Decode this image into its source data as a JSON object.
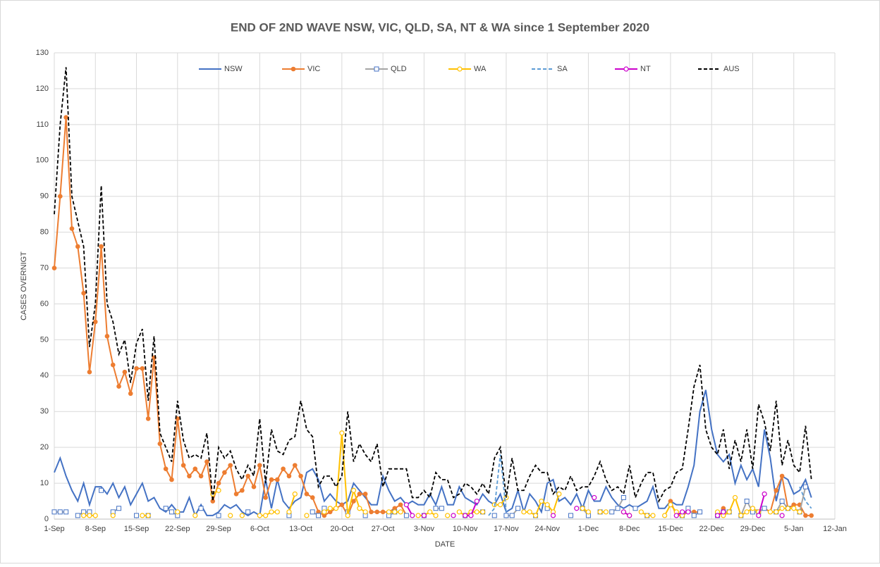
{
  "chart_data": {
    "type": "line",
    "title": "END OF 2ND WAVE NSW, VIC, QLD, SA, NT & WA since 1 September 2020",
    "x_label": "DATE",
    "y_label": "CASES OVERNIGT",
    "xlim": [
      0,
      133
    ],
    "xticks": [
      {
        "value": 0,
        "label": "1-Sep"
      },
      {
        "value": 7,
        "label": "8-Sep"
      },
      {
        "value": 14,
        "label": "15-Sep"
      },
      {
        "value": 21,
        "label": "22-Sep"
      },
      {
        "value": 28,
        "label": "29-Sep"
      },
      {
        "value": 35,
        "label": "6-Oct"
      },
      {
        "value": 42,
        "label": "13-Oct"
      },
      {
        "value": 49,
        "label": "20-Oct"
      },
      {
        "value": 56,
        "label": "27-Oct"
      },
      {
        "value": 63,
        "label": "3-Nov"
      },
      {
        "value": 70,
        "label": "10-Nov"
      },
      {
        "value": 77,
        "label": "17-Nov"
      },
      {
        "value": 84,
        "label": "24-Nov"
      },
      {
        "value": 91,
        "label": "1-Dec"
      },
      {
        "value": 98,
        "label": "8-Dec"
      },
      {
        "value": 105,
        "label": "15-Dec"
      },
      {
        "value": 112,
        "label": "22-Dec"
      },
      {
        "value": 119,
        "label": "29-Dec"
      },
      {
        "value": 126,
        "label": "5-Jan"
      },
      {
        "value": 133,
        "label": "12-Jan"
      }
    ],
    "ylim": [
      0,
      130
    ],
    "yticks": [
      0,
      10,
      20,
      30,
      40,
      50,
      60,
      70,
      80,
      90,
      100,
      110,
      120,
      130
    ],
    "grid": true,
    "legend": "top",
    "x": [
      0,
      1,
      2,
      3,
      4,
      5,
      6,
      7,
      8,
      9,
      10,
      11,
      12,
      13,
      14,
      15,
      16,
      17,
      18,
      19,
      20,
      21,
      22,
      23,
      24,
      25,
      26,
      27,
      28,
      29,
      30,
      31,
      32,
      33,
      34,
      35,
      36,
      37,
      38,
      39,
      40,
      41,
      42,
      43,
      44,
      45,
      46,
      47,
      48,
      49,
      50,
      51,
      52,
      53,
      54,
      55,
      56,
      57,
      58,
      59,
      60,
      61,
      62,
      63,
      64,
      65,
      66,
      67,
      68,
      69,
      70,
      71,
      72,
      73,
      74,
      75,
      76,
      77,
      78,
      79,
      80,
      81,
      82,
      83,
      84,
      85,
      86,
      87,
      88,
      89,
      90,
      91,
      92,
      93,
      94,
      95,
      96,
      97,
      98,
      99,
      100,
      101,
      102,
      103,
      104,
      105,
      106,
      107,
      108,
      109,
      110,
      111,
      112,
      113,
      114,
      115,
      116,
      117,
      118,
      119,
      120,
      121,
      122,
      123,
      124,
      125,
      126,
      127,
      128,
      129
    ],
    "series": [
      {
        "name": "NSW",
        "color": "#4472c4",
        "marker": "none",
        "dash": false,
        "values": [
          13,
          17,
          12,
          8,
          5,
          10,
          4,
          9,
          9,
          7,
          10,
          6,
          9,
          4,
          7,
          10,
          5,
          6,
          3,
          2,
          4,
          2,
          2,
          6,
          1,
          4,
          1,
          1,
          2,
          4,
          3,
          4,
          2,
          1,
          2,
          1,
          11,
          3,
          11,
          5,
          3,
          5,
          6,
          13,
          14,
          11,
          5,
          7,
          5,
          4,
          5,
          10,
          8,
          6,
          4,
          4,
          12,
          8,
          5,
          6,
          4,
          5,
          4,
          4,
          7,
          4,
          9,
          4,
          4,
          9,
          6,
          5,
          4,
          7,
          5,
          4,
          7,
          2,
          3,
          8,
          2,
          7,
          5,
          2,
          10,
          11,
          5,
          6,
          4,
          7,
          3,
          8,
          5,
          5,
          9,
          6,
          4,
          3,
          4,
          3,
          4,
          5,
          9,
          3,
          3,
          5,
          4,
          4,
          9,
          15,
          30,
          36,
          25,
          18,
          16,
          18,
          10,
          15,
          11,
          14,
          9,
          25,
          17,
          5,
          12,
          11,
          7,
          8,
          11,
          6
        ]
      },
      {
        "name": "VIC",
        "color": "#ed7d31",
        "marker": "circle-filled",
        "dash": false,
        "x": [
          0,
          1,
          2,
          3,
          4,
          5,
          6,
          7,
          8,
          9,
          10,
          11,
          12,
          13,
          14,
          15,
          16,
          17,
          18,
          19,
          20,
          21,
          22,
          23,
          24,
          25,
          26,
          27,
          28,
          29,
          30,
          31,
          32,
          33,
          34,
          35,
          36,
          37,
          38,
          39,
          40,
          41,
          42,
          43,
          44,
          45,
          46,
          47,
          48,
          49,
          50,
          51,
          52,
          53,
          54,
          55,
          56,
          57,
          58,
          59,
          60,
          105,
          106,
          107,
          108,
          109,
          110,
          114,
          120,
          121,
          122,
          123,
          124,
          125,
          126,
          127,
          128,
          129
        ],
        "values": [
          70,
          90,
          112,
          81,
          76,
          63,
          41,
          55,
          76,
          51,
          43,
          37,
          41,
          35,
          42,
          42,
          28,
          45,
          21,
          14,
          11,
          28,
          15,
          12,
          14,
          12,
          16,
          5,
          10,
          13,
          15,
          7,
          8,
          12,
          9,
          15,
          6,
          11,
          11,
          14,
          12,
          15,
          12,
          7,
          6,
          2,
          1,
          2,
          3,
          4,
          1,
          5,
          7,
          7,
          2,
          2,
          2,
          2,
          3,
          4,
          1,
          5,
          1,
          1,
          2,
          2,
          2,
          3,
          2,
          3,
          2,
          8,
          12,
          3,
          4,
          4,
          1,
          1
        ]
      },
      {
        "name": "QLD",
        "color": "#a5a5a5",
        "marker": "square-open",
        "marker_color": "#4472c4",
        "dash": false,
        "x": [
          0,
          1,
          2,
          4,
          5,
          6,
          8,
          10,
          11,
          14,
          16,
          19,
          20,
          21,
          25,
          28,
          33,
          40,
          44,
          45,
          46,
          50,
          53,
          57,
          58,
          60,
          63,
          65,
          66,
          70,
          73,
          75,
          77,
          78,
          79,
          82,
          84,
          88,
          90,
          91,
          93,
          95,
          96,
          97,
          99,
          101,
          107,
          108,
          109,
          110,
          113,
          114,
          115,
          117,
          118,
          119,
          120,
          121,
          123,
          124,
          125,
          127,
          128
        ],
        "values": [
          2,
          2,
          2,
          1,
          2,
          2,
          8,
          2,
          3,
          1,
          1,
          3,
          2,
          1,
          3,
          1,
          2,
          1,
          2,
          1,
          3,
          2,
          1,
          1,
          2,
          1,
          1,
          3,
          3,
          1,
          2,
          1,
          1,
          1,
          3,
          1,
          3,
          1,
          3,
          1,
          2,
          2,
          3,
          6,
          3,
          1,
          1,
          3,
          1,
          2,
          1,
          2,
          2,
          1,
          5,
          2,
          2,
          3,
          2,
          5,
          3,
          2,
          9
        ]
      },
      {
        "name": "WA",
        "color": "#ffc000",
        "marker": "circle-open",
        "dash": false,
        "x": [
          5,
          6,
          7,
          10,
          15,
          16,
          21,
          24,
          27,
          28,
          30,
          32,
          35,
          36,
          37,
          38,
          40,
          41,
          43,
          46,
          47,
          48,
          49,
          50,
          51,
          52,
          53,
          57,
          58,
          59,
          62,
          63,
          64,
          65,
          67,
          69,
          70,
          71,
          72,
          73,
          75,
          76,
          77,
          80,
          81,
          82,
          83,
          84,
          85,
          86,
          90,
          91,
          93,
          94,
          97,
          98,
          100,
          101,
          102,
          104,
          105,
          106,
          107,
          113,
          114,
          115,
          116,
          117,
          118,
          119,
          120,
          122,
          123,
          124,
          125,
          126,
          127
        ],
        "values": [
          1,
          1,
          1,
          1,
          1,
          1,
          2,
          1,
          7,
          8,
          1,
          1,
          1,
          1,
          2,
          2,
          2,
          7,
          1,
          2,
          3,
          3,
          24,
          1,
          8,
          3,
          2,
          2,
          2,
          2,
          1,
          1,
          2,
          1,
          1,
          2,
          1,
          2,
          2,
          2,
          4,
          4,
          6,
          2,
          2,
          1,
          5,
          4,
          2,
          7,
          3,
          2,
          2,
          2,
          2,
          1,
          2,
          1,
          1,
          1,
          4,
          2,
          1,
          2,
          1,
          2,
          6,
          1,
          2,
          3,
          2,
          2,
          2,
          3,
          3,
          3,
          2
        ]
      },
      {
        "name": "SA",
        "color": "#5b9bd5",
        "marker": "none",
        "dash": true,
        "x": [
          45,
          62,
          74,
          75,
          76,
          77,
          90,
          107,
          127,
          128,
          129
        ],
        "values": [
          1,
          2,
          1,
          3,
          18,
          2,
          1,
          1,
          9,
          5,
          3
        ]
      },
      {
        "name": "NT",
        "color": "#cc00cc",
        "marker": "circle-open",
        "dash": false,
        "x": [
          60,
          61,
          63,
          68,
          70,
          71,
          72,
          85,
          89,
          92,
          97,
          98,
          106,
          107,
          108,
          113,
          114,
          120,
          121,
          124
        ],
        "values": [
          4,
          1,
          1,
          1,
          1,
          1,
          5,
          1,
          3,
          6,
          2,
          1,
          1,
          2,
          2,
          1,
          2,
          1,
          7,
          1
        ]
      },
      {
        "name": "AUS",
        "color": "#000000",
        "marker": "none",
        "dash": true,
        "values": [
          85,
          110,
          126,
          90,
          83,
          76,
          48,
          60,
          93,
          60,
          55,
          46,
          50,
          38,
          49,
          53,
          33,
          51,
          24,
          20,
          16,
          33,
          22,
          17,
          18,
          17,
          24,
          5,
          20,
          17,
          19,
          14,
          11,
          15,
          12,
          28,
          10,
          25,
          19,
          18,
          22,
          23,
          33,
          25,
          23,
          9,
          12,
          12,
          9,
          12,
          30,
          16,
          21,
          18,
          16,
          21,
          9,
          14,
          14,
          14,
          14,
          6,
          6,
          8,
          6,
          13,
          11,
          11,
          6,
          7,
          10,
          9,
          7,
          10,
          7,
          17,
          20,
          6,
          17,
          8,
          8,
          12,
          15,
          13,
          13,
          7,
          9,
          8,
          12,
          8,
          9,
          9,
          12,
          16,
          11,
          8,
          9,
          7,
          15,
          6,
          10,
          13,
          13,
          5,
          8,
          9,
          13,
          14,
          25,
          37,
          43,
          25,
          20,
          18,
          25,
          14,
          22,
          16,
          25,
          14,
          32,
          27,
          19,
          33,
          15,
          22,
          15,
          13,
          26,
          11
        ]
      }
    ]
  }
}
